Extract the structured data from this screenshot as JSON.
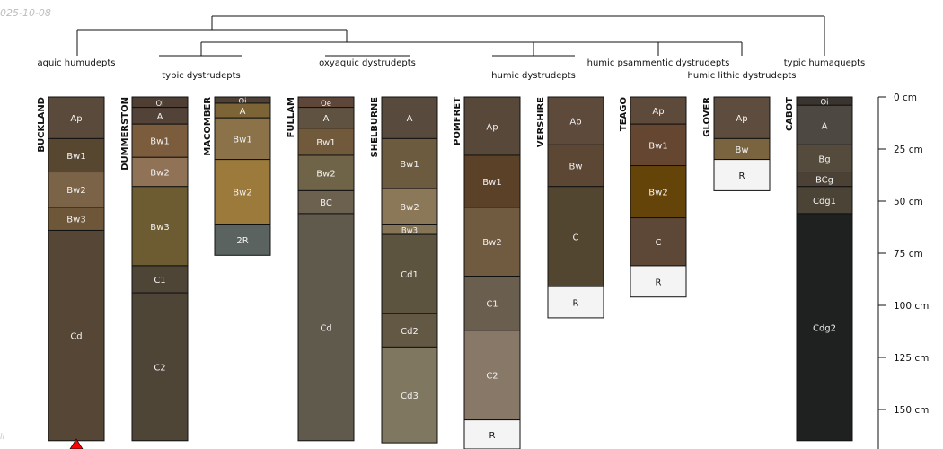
{
  "date_stamp": "025-10-08",
  "corner_mark": "ll",
  "depth_axis": {
    "unit": "cm",
    "max_depth": 170,
    "ticks": [
      {
        "depth": 0,
        "label": "0 cm"
      },
      {
        "depth": 25,
        "label": "25 cm"
      },
      {
        "depth": 50,
        "label": "50 cm"
      },
      {
        "depth": 75,
        "label": "75 cm"
      },
      {
        "depth": 100,
        "label": "100 cm"
      },
      {
        "depth": 125,
        "label": "125 cm"
      },
      {
        "depth": 150,
        "label": "150 cm"
      }
    ]
  },
  "taxa": [
    {
      "label": "aquic humudepts"
    },
    {
      "label": "typic dystrudepts"
    },
    {
      "label": "oxyaquic dystrudepts"
    },
    {
      "label": "humic dystrudepts"
    },
    {
      "label": "humic psammentic dystrudepts"
    },
    {
      "label": "humic lithic dystrudepts"
    },
    {
      "label": "typic humaquepts"
    }
  ],
  "profiles": [
    {
      "name": "BUCKLAND",
      "truncated": true,
      "horizons": [
        {
          "name": "Ap",
          "top": 0,
          "bottom": 20,
          "color": "#5a4a3c"
        },
        {
          "name": "Bw1",
          "top": 20,
          "bottom": 36,
          "color": "#574630"
        },
        {
          "name": "Bw2",
          "top": 36,
          "bottom": 53,
          "color": "#7b6347"
        },
        {
          "name": "Bw3",
          "top": 53,
          "bottom": 64,
          "color": "#6e5638"
        },
        {
          "name": "Cd",
          "top": 64,
          "bottom": 165,
          "color": "#554636"
        }
      ]
    },
    {
      "name": "DUMMERSTON",
      "truncated": false,
      "horizons": [
        {
          "name": "Oi",
          "top": 0,
          "bottom": 5,
          "color": "#4e3e33"
        },
        {
          "name": "A",
          "top": 5,
          "bottom": 13,
          "color": "#524237"
        },
        {
          "name": "Bw1",
          "top": 13,
          "bottom": 29,
          "color": "#7b5d3e"
        },
        {
          "name": "Bw2",
          "top": 29,
          "bottom": 43,
          "color": "#907257"
        },
        {
          "name": "Bw3",
          "top": 43,
          "bottom": 81,
          "color": "#6d5c32"
        },
        {
          "name": "C1",
          "top": 81,
          "bottom": 94,
          "color": "#4e4536"
        },
        {
          "name": "C2",
          "top": 94,
          "bottom": 165,
          "color": "#4e4536"
        }
      ]
    },
    {
      "name": "MACOMBER",
      "truncated": false,
      "horizons": [
        {
          "name": "Oi",
          "top": 0,
          "bottom": 3,
          "color": "#4e4035"
        },
        {
          "name": "A",
          "top": 3,
          "bottom": 10,
          "color": "#7c6437"
        },
        {
          "name": "Bw1",
          "top": 10,
          "bottom": 30,
          "color": "#8b7249"
        },
        {
          "name": "Bw2",
          "top": 30,
          "bottom": 61,
          "color": "#9b7a3c"
        },
        {
          "name": "2R",
          "top": 61,
          "bottom": 76,
          "color": "#5a6360"
        }
      ]
    },
    {
      "name": "FULLAM",
      "truncated": false,
      "horizons": [
        {
          "name": "Oe",
          "top": 0,
          "bottom": 5,
          "color": "#5e4638"
        },
        {
          "name": "A",
          "top": 5,
          "bottom": 15,
          "color": "#5f5241"
        },
        {
          "name": "Bw1",
          "top": 15,
          "bottom": 28,
          "color": "#715a3c"
        },
        {
          "name": "Bw2",
          "top": 28,
          "bottom": 45,
          "color": "#6f6448"
        },
        {
          "name": "BC",
          "top": 45,
          "bottom": 56,
          "color": "#6c614f"
        },
        {
          "name": "Cd",
          "top": 56,
          "bottom": 165,
          "color": "#605a4d"
        }
      ]
    },
    {
      "name": "SHELBURNE",
      "truncated": false,
      "horizons": [
        {
          "name": "A",
          "top": 0,
          "bottom": 20,
          "color": "#584a3d"
        },
        {
          "name": "Bw1",
          "top": 20,
          "bottom": 44,
          "color": "#6c5b3f"
        },
        {
          "name": "Bw2",
          "top": 44,
          "bottom": 61,
          "color": "#8a7859"
        },
        {
          "name": "Bw3",
          "top": 61,
          "bottom": 66,
          "color": "#857556"
        },
        {
          "name": "Cd1",
          "top": 66,
          "bottom": 104,
          "color": "#5d5440"
        },
        {
          "name": "Cd2",
          "top": 104,
          "bottom": 120,
          "color": "#635843"
        },
        {
          "name": "Cd3",
          "top": 120,
          "bottom": 166,
          "color": "#7f775f"
        }
      ]
    },
    {
      "name": "POMFRET",
      "truncated": false,
      "horizons": [
        {
          "name": "Ap",
          "top": 0,
          "bottom": 28,
          "color": "#584839"
        },
        {
          "name": "Bw1",
          "top": 28,
          "bottom": 53,
          "color": "#5b4128"
        },
        {
          "name": "Bw2",
          "top": 53,
          "bottom": 86,
          "color": "#705a40"
        },
        {
          "name": "C1",
          "top": 86,
          "bottom": 112,
          "color": "#6a5e4f"
        },
        {
          "name": "C2",
          "top": 112,
          "bottom": 155,
          "color": "#877867"
        },
        {
          "name": "R",
          "top": 155,
          "bottom": 170,
          "color": "#f4f4f4"
        }
      ]
    },
    {
      "name": "VERSHIRE",
      "truncated": false,
      "horizons": [
        {
          "name": "Ap",
          "top": 0,
          "bottom": 23,
          "color": "#5d4a3b"
        },
        {
          "name": "Bw",
          "top": 23,
          "bottom": 43,
          "color": "#5c4634"
        },
        {
          "name": "C",
          "top": 43,
          "bottom": 91,
          "color": "#534630"
        },
        {
          "name": "R",
          "top": 91,
          "bottom": 106,
          "color": "#f4f4f4"
        }
      ]
    },
    {
      "name": "TEAGO",
      "truncated": false,
      "horizons": [
        {
          "name": "Ap",
          "top": 0,
          "bottom": 13,
          "color": "#5e4a3a"
        },
        {
          "name": "Bw1",
          "top": 13,
          "bottom": 33,
          "color": "#654630"
        },
        {
          "name": "Bw2",
          "top": 33,
          "bottom": 58,
          "color": "#654409"
        },
        {
          "name": "C",
          "top": 58,
          "bottom": 81,
          "color": "#5d4737"
        },
        {
          "name": "R",
          "top": 81,
          "bottom": 96,
          "color": "#f4f4f4"
        }
      ]
    },
    {
      "name": "GLOVER",
      "truncated": false,
      "horizons": [
        {
          "name": "Ap",
          "top": 0,
          "bottom": 20,
          "color": "#5e4c3e"
        },
        {
          "name": "Bw",
          "top": 20,
          "bottom": 30,
          "color": "#7a6440"
        },
        {
          "name": "R",
          "top": 30,
          "bottom": 45,
          "color": "#f4f4f4"
        }
      ]
    },
    {
      "name": "CABOT",
      "truncated": false,
      "horizons": [
        {
          "name": "Oi",
          "top": 0,
          "bottom": 4,
          "color": "#3a3430"
        },
        {
          "name": "A",
          "top": 4,
          "bottom": 23,
          "color": "#4d4842"
        },
        {
          "name": "Bg",
          "top": 23,
          "bottom": 36,
          "color": "#554b3d"
        },
        {
          "name": "BCg",
          "top": 36,
          "bottom": 43,
          "color": "#4b4135"
        },
        {
          "name": "Cdg1",
          "top": 43,
          "bottom": 56,
          "color": "#4a4336"
        },
        {
          "name": "Cdg2",
          "top": 56,
          "bottom": 165,
          "color": "#1f2020"
        }
      ]
    }
  ]
}
